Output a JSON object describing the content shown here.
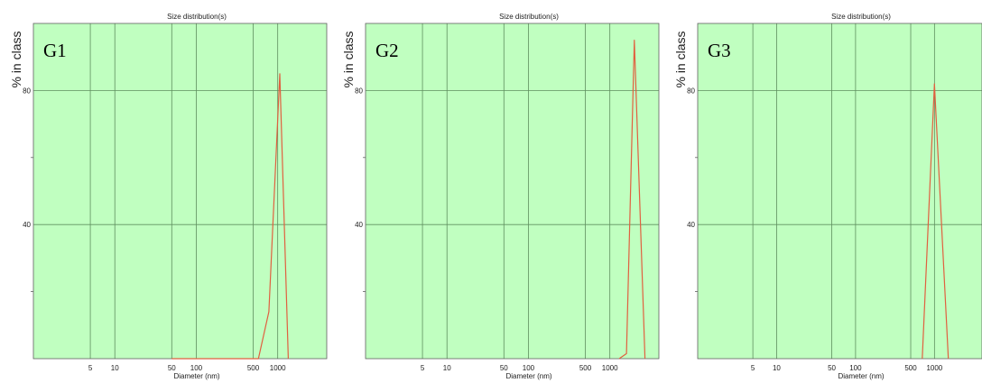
{
  "chart_data": [
    {
      "type": "line",
      "panel_label": "G1",
      "title": "Size distribution(s)",
      "xlabel": "Diameter (nm)",
      "ylabel": "% in class",
      "xscale": "log",
      "xlim": [
        1,
        4000
      ],
      "ylim": [
        0,
        100
      ],
      "x_ticks": [
        5,
        10,
        50,
        100,
        500,
        1000
      ],
      "x_tick_labels": [
        "5",
        "10",
        "50",
        "100",
        "500",
        "1000"
      ],
      "y_ticks": [
        40,
        80
      ],
      "y_tick_labels": [
        "40",
        "80"
      ],
      "grid": true,
      "background_color": "#c0ffc0",
      "grid_color": "#5f8f5f",
      "line_color": "#e06040",
      "series": [
        {
          "x": [
            50,
            580,
            580,
            780,
            1060,
            1350,
            1350
          ],
          "y": [
            0,
            0,
            0,
            14,
            85,
            0,
            0
          ]
        }
      ]
    },
    {
      "type": "line",
      "panel_label": "G2",
      "title": "Size distribution(s)",
      "xlabel": "Diameter (nm)",
      "ylabel": "% in class",
      "xscale": "log",
      "xlim": [
        1,
        4000
      ],
      "ylim": [
        0,
        100
      ],
      "x_ticks": [
        5,
        10,
        50,
        100,
        500,
        1000
      ],
      "x_tick_labels": [
        "5",
        "10",
        "50",
        "100",
        "500",
        "1000"
      ],
      "y_ticks": [
        40,
        80
      ],
      "y_tick_labels": [
        "40",
        "80"
      ],
      "grid": true,
      "background_color": "#c0ffc0",
      "grid_color": "#5f8f5f",
      "line_color": "#e06040",
      "series": [
        {
          "x": [
            1300,
            1300,
            1600,
            2000,
            2700,
            2700
          ],
          "y": [
            0,
            0,
            1.5,
            95,
            0,
            0
          ]
        }
      ]
    },
    {
      "type": "line",
      "panel_label": "G3",
      "title": "Size distribution(s)",
      "xlabel": "Diameter (nm)",
      "ylabel": "% in class",
      "xscale": "log",
      "xlim": [
        1,
        4000
      ],
      "ylim": [
        0,
        100
      ],
      "x_ticks": [
        5,
        10,
        50,
        100,
        500,
        1000
      ],
      "x_tick_labels": [
        "5",
        "10",
        "50",
        "100",
        "500",
        "1000"
      ],
      "y_ticks": [
        40,
        80
      ],
      "y_tick_labels": [
        "40",
        "80"
      ],
      "grid": true,
      "background_color": "#c0ffc0",
      "grid_color": "#5f8f5f",
      "line_color": "#e06040",
      "series": [
        {
          "x": [
            700,
            700,
            1000,
            1500,
            1500
          ],
          "y": [
            0,
            0,
            82,
            0,
            0
          ]
        }
      ]
    }
  ]
}
